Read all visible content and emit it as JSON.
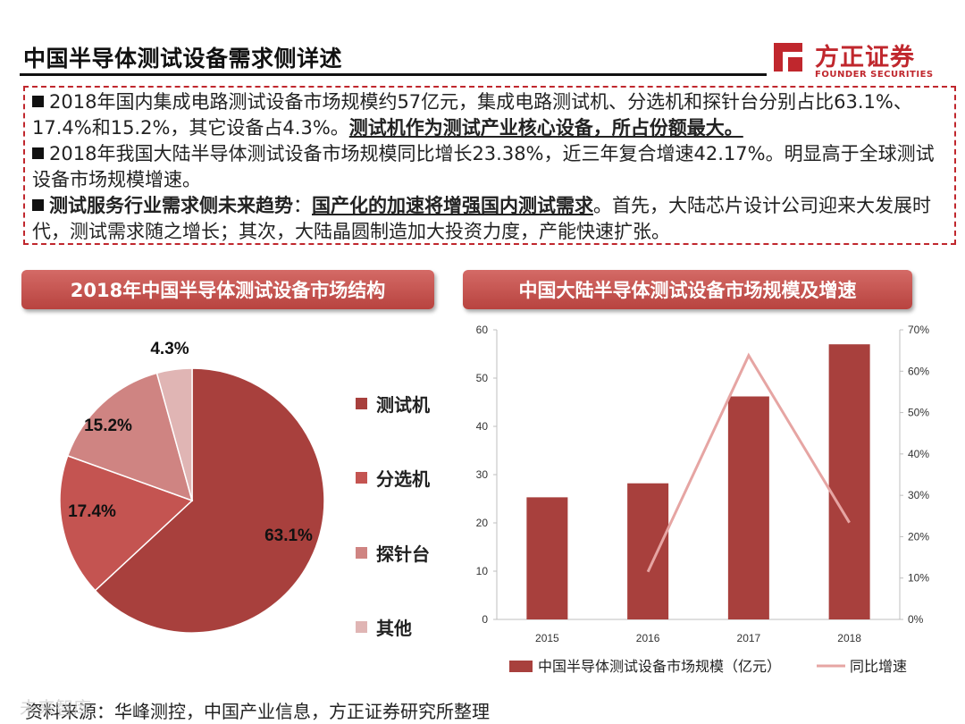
{
  "page": {
    "title": "中国半导体测试设备需求侧详述",
    "logo_cn": "方正证券",
    "logo_en": "FOUNDER SECURITIES",
    "bullets": {
      "b1_a": "2018年国内集成电路测试设备市场规模约57亿元，集成电路测试机、分选机和探针台分别占比63.1%、17.4%和15.2%，其它设备占4.3%。",
      "b1_b": "测试机作为测试产业核心设备，所占份额最大。",
      "b2": "2018年我国大陆半导体测试设备市场规模同比增长23.38%，近三年复合增速42.17%。明显高于全球测试设备市场规模增速。",
      "b3_a": "测试服务行业需求侧未来趋势",
      "b3_b": "：",
      "b3_c": "国产化的加速将增强国内测试需求",
      "b3_d": "。首先，大陆芯片设计公司迎来大发展时代，测试需求随之增长；其次，大陆晶圆制造加大投资力度，产能快速扩张。"
    },
    "footer": "资料来源：华峰测控，中国产业信息，方正证券研究所整理",
    "watermark": "未来智库"
  },
  "colors": {
    "brand_red": "#c0272d",
    "header_red": "#c0504d",
    "bar": "#a8403d",
    "line": "#e6a5a3",
    "pie": [
      "#a8403d",
      "#c45451",
      "#cf8482",
      "#e0b5b4"
    ]
  },
  "chart_data": [
    {
      "type": "pie",
      "title": "2018年中国半导体测试设备市场结构",
      "labels": [
        "测试机",
        "分选机",
        "探针台",
        "其他"
      ],
      "values": [
        63.1,
        17.4,
        15.2,
        4.3
      ],
      "data_labels": [
        "63.1%",
        "17.4%",
        "15.2%",
        "4.3%"
      ],
      "legend": "right"
    },
    {
      "type": "bar",
      "title": "中国大陆半导体测试设备市场规模及增速",
      "categories": [
        "2015",
        "2016",
        "2017",
        "2018"
      ],
      "series": [
        {
          "name": "中国半导体测试设备市场规模（亿元）",
          "type": "bar",
          "axis": "left",
          "values": [
            25.3,
            28.2,
            46.2,
            57.0
          ]
        },
        {
          "name": "同比增速",
          "type": "line",
          "axis": "right",
          "values": [
            null,
            11.5,
            63.8,
            23.4
          ]
        }
      ],
      "y_left": {
        "min": 0,
        "max": 60,
        "ticks": [
          "0",
          "10",
          "20",
          "30",
          "40",
          "50",
          "60"
        ]
      },
      "y_right": {
        "min": 0,
        "max": 70,
        "ticks": [
          "0%",
          "10%",
          "20%",
          "30%",
          "40%",
          "50%",
          "60%",
          "70%"
        ]
      },
      "legend": "bottom",
      "grid": false
    }
  ]
}
